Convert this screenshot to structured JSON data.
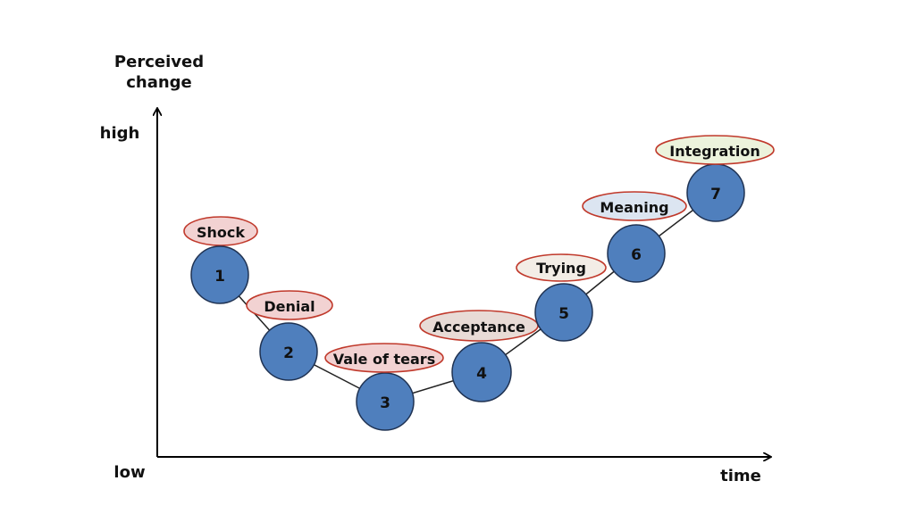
{
  "axes": {
    "y_title_line1": "Perceived",
    "y_title_line2": "change",
    "y_high": "high",
    "y_low": "low",
    "x_label": "time"
  },
  "stages": [
    {
      "number": "1",
      "label": "Shock",
      "label_fill": "#f2d2d2"
    },
    {
      "number": "2",
      "label": "Denial",
      "label_fill": "#f2d2d2"
    },
    {
      "number": "3",
      "label": "Vale of tears",
      "label_fill": "#f2d2d2"
    },
    {
      "number": "4",
      "label": "Acceptance",
      "label_fill": "#e8dbd6"
    },
    {
      "number": "5",
      "label": "Trying",
      "label_fill": "#f3ede6"
    },
    {
      "number": "6",
      "label": "Meaning",
      "label_fill": "#dce5f1"
    },
    {
      "number": "7",
      "label": "Integration",
      "label_fill": "#ecf3dc"
    }
  ],
  "colors": {
    "node_fill": "#4f7fbd",
    "node_stroke": "#1f3252",
    "label_stroke": "#c0392b",
    "axis": "#000000"
  }
}
